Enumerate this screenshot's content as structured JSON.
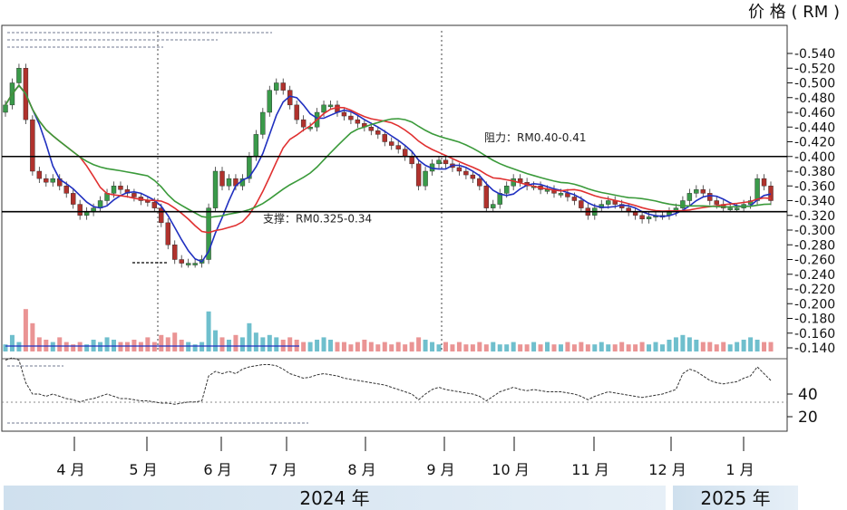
{
  "chart_data": {
    "type": "candlestick",
    "unit_label": "价 格 ( RM )",
    "ylim": [
      0.13,
      0.555
    ],
    "y_ticks": [
      "0.540",
      "0.520",
      "0.500",
      "0.480",
      "0.460",
      "0.440",
      "0.420",
      "0.400",
      "0.380",
      "0.360",
      "0.340",
      "0.320",
      "0.300",
      "0.280",
      "0.260",
      "0.240",
      "0.220",
      "0.200",
      "0.180",
      "0.160",
      "0.140"
    ],
    "rsi_ticks": [
      "40",
      "20"
    ],
    "months": [
      "4 月",
      "5 月",
      "6 月",
      "7 月",
      "8 月",
      "9 月",
      "10 月",
      "11 月",
      "12 月",
      "1 月"
    ],
    "years": [
      "2024 年",
      "2025 年"
    ],
    "annotations": {
      "resistance": {
        "label": "阻力：RM0.40-0.41",
        "level": 0.4
      },
      "support": {
        "label": "支撑：RM0.325-0.34",
        "level": 0.325
      }
    },
    "price_path": [
      0.47,
      0.5,
      0.52,
      0.45,
      0.38,
      0.37,
      0.365,
      0.37,
      0.36,
      0.35,
      0.335,
      0.32,
      0.325,
      0.33,
      0.34,
      0.35,
      0.36,
      0.355,
      0.35,
      0.345,
      0.34,
      0.338,
      0.33,
      0.31,
      0.28,
      0.26,
      0.255,
      0.255,
      0.255,
      0.26,
      0.33,
      0.38,
      0.36,
      0.37,
      0.36,
      0.37,
      0.4,
      0.43,
      0.46,
      0.49,
      0.5,
      0.49,
      0.47,
      0.45,
      0.44,
      0.44,
      0.46,
      0.47,
      0.47,
      0.46,
      0.455,
      0.45,
      0.445,
      0.44,
      0.435,
      0.43,
      0.42,
      0.415,
      0.41,
      0.4,
      0.39,
      0.36,
      0.38,
      0.39,
      0.395,
      0.39,
      0.385,
      0.38,
      0.375,
      0.37,
      0.36,
      0.33,
      0.335,
      0.35,
      0.36,
      0.37,
      0.365,
      0.36,
      0.36,
      0.355,
      0.355,
      0.35,
      0.35,
      0.345,
      0.34,
      0.33,
      0.32,
      0.33,
      0.335,
      0.34,
      0.335,
      0.33,
      0.325,
      0.32,
      0.315,
      0.318,
      0.32,
      0.32,
      0.325,
      0.33,
      0.34,
      0.35,
      0.355,
      0.35,
      0.34,
      0.335,
      0.33,
      0.33,
      0.33,
      0.335,
      0.34,
      0.37,
      0.36,
      0.34
    ],
    "volume_path": [
      0.15,
      0.35,
      0.2,
      0.9,
      0.6,
      0.3,
      0.25,
      0.2,
      0.3,
      0.2,
      0.15,
      0.2,
      0.15,
      0.25,
      0.2,
      0.3,
      0.25,
      0.2,
      0.2,
      0.25,
      0.2,
      0.3,
      0.2,
      0.35,
      0.3,
      0.4,
      0.25,
      0.2,
      0.15,
      0.2,
      0.85,
      0.45,
      0.3,
      0.25,
      0.35,
      0.3,
      0.6,
      0.4,
      0.3,
      0.35,
      0.3,
      0.25,
      0.3,
      0.25,
      0.2,
      0.2,
      0.25,
      0.3,
      0.25,
      0.2,
      0.2,
      0.15,
      0.2,
      0.25,
      0.2,
      0.15,
      0.2,
      0.15,
      0.2,
      0.15,
      0.2,
      0.3,
      0.25,
      0.2,
      0.15,
      0.2,
      0.15,
      0.2,
      0.15,
      0.15,
      0.2,
      0.15,
      0.2,
      0.15,
      0.15,
      0.2,
      0.15,
      0.15,
      0.2,
      0.15,
      0.2,
      0.15,
      0.15,
      0.2,
      0.15,
      0.2,
      0.15,
      0.15,
      0.2,
      0.15,
      0.15,
      0.2,
      0.15,
      0.15,
      0.2,
      0.15,
      0.2,
      0.15,
      0.25,
      0.3,
      0.35,
      0.3,
      0.25,
      0.2,
      0.2,
      0.15,
      0.2,
      0.15,
      0.2,
      0.25,
      0.3,
      0.25,
      0.2,
      0.2
    ],
    "rsi_path": [
      70,
      72,
      70,
      50,
      40,
      40,
      38,
      40,
      38,
      36,
      35,
      33,
      35,
      36,
      38,
      40,
      38,
      36,
      36,
      35,
      34,
      34,
      33,
      32,
      32,
      31,
      32,
      33,
      33,
      34,
      56,
      60,
      58,
      60,
      58,
      62,
      64,
      65,
      66,
      66,
      65,
      62,
      58,
      56,
      54,
      55,
      57,
      58,
      57,
      56,
      54,
      53,
      52,
      51,
      50,
      49,
      48,
      46,
      44,
      42,
      40,
      35,
      40,
      44,
      46,
      44,
      43,
      42,
      41,
      40,
      38,
      34,
      38,
      42,
      44,
      46,
      44,
      43,
      44,
      43,
      42,
      42,
      42,
      41,
      40,
      38,
      35,
      38,
      40,
      42,
      41,
      40,
      39,
      38,
      37,
      38,
      39,
      40,
      42,
      44,
      58,
      62,
      60,
      56,
      52,
      50,
      49,
      50,
      51,
      54,
      56,
      64,
      58,
      52
    ]
  }
}
